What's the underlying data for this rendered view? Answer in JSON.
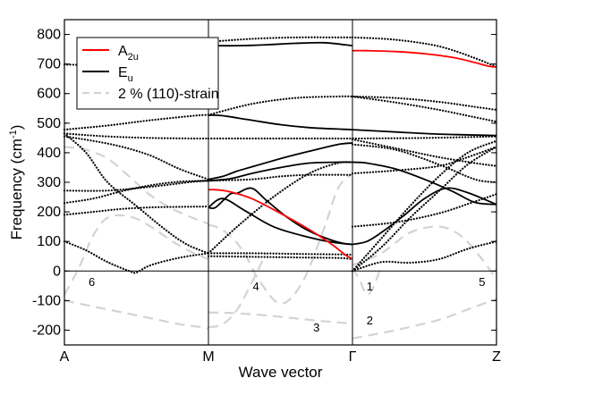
{
  "chart_data": {
    "type": "line",
    "title": "",
    "xlabel": "Wave vector",
    "ylabel": "Frequency (cm",
    "ylabel_sup": "-1",
    "ylabel_close": ")",
    "ylim": [
      -250,
      850
    ],
    "yticks": [
      -200,
      -100,
      0,
      100,
      200,
      300,
      400,
      500,
      600,
      700,
      800
    ],
    "xlim": [
      0,
      3
    ],
    "x_high_symmetry": [
      {
        "label": "A",
        "x": 0
      },
      {
        "label": "M",
        "x": 1
      },
      {
        "label": "Γ",
        "x": 2
      },
      {
        "label": "Z",
        "x": 3
      }
    ],
    "grid": false,
    "legend_position": "top-left",
    "legend": [
      {
        "name": "A",
        "sub": "2u",
        "color": "#ff0000",
        "style": "solid"
      },
      {
        "name": "E",
        "sub": "u",
        "color": "#000000",
        "style": "solid"
      },
      {
        "name": "2 % (110)-strain",
        "sub": "",
        "color": "#d3d3d3",
        "style": "dashed"
      }
    ],
    "annotations": [
      {
        "text": "1",
        "x": 2.12,
        "y": -65
      },
      {
        "text": "2",
        "x": 2.12,
        "y": -180
      },
      {
        "text": "3",
        "x": 1.75,
        "y": -205
      },
      {
        "text": "4",
        "x": 1.33,
        "y": -65
      },
      {
        "text": "5",
        "x": 2.9,
        "y": -50
      },
      {
        "text": "6",
        "x": 0.19,
        "y": -50
      }
    ],
    "series": [
      {
        "kind": "A2u",
        "color": "#ff0000",
        "dash": "solid",
        "x": [
          1.0,
          1.05,
          1.15,
          1.3,
          1.5,
          1.7,
          1.85,
          1.95,
          2.0
        ],
        "y": [
          275,
          275,
          268,
          245,
          195,
          140,
          92,
          55,
          40
        ]
      },
      {
        "kind": "A2u",
        "color": "#ff0000",
        "dash": "solid",
        "x": [
          2.0,
          2.1,
          2.3,
          2.5,
          2.7,
          2.85,
          2.95,
          3.0
        ],
        "y": [
          745,
          745,
          742,
          735,
          722,
          705,
          692,
          690
        ]
      },
      {
        "kind": "Eu",
        "color": "#000000",
        "dash": "solid",
        "x": [
          1.0,
          1.2,
          1.4,
          1.6,
          1.8,
          1.95,
          2.0
        ],
        "y": [
          762,
          762,
          765,
          770,
          772,
          765,
          762
        ]
      },
      {
        "kind": "Eu",
        "color": "#000000",
        "dash": "solid",
        "x": [
          1.0,
          1.1,
          1.3,
          1.5,
          1.7,
          1.9,
          2.0
        ],
        "y": [
          527,
          525,
          510,
          495,
          485,
          480,
          478
        ]
      },
      {
        "kind": "Eu",
        "color": "#000000",
        "dash": "solid",
        "x": [
          2.0,
          2.3,
          2.6,
          3.0
        ],
        "y": [
          478,
          470,
          463,
          458
        ]
      },
      {
        "kind": "Eu",
        "color": "#000000",
        "dash": "solid",
        "x": [
          1.0,
          1.1,
          1.2,
          1.3,
          1.5,
          1.7,
          1.9,
          2.0
        ],
        "y": [
          310,
          320,
          338,
          352,
          380,
          405,
          428,
          433
        ]
      },
      {
        "kind": "Eu",
        "color": "#000000",
        "dash": "solid",
        "x": [
          1.0,
          1.15,
          1.3,
          1.5,
          1.7,
          1.9,
          2.0
        ],
        "y": [
          305,
          312,
          330,
          350,
          365,
          368,
          368
        ]
      },
      {
        "kind": "Eu",
        "color": "#000000",
        "dash": "solid",
        "x": [
          2.0,
          2.1,
          2.3,
          2.5,
          2.7,
          2.85,
          3.0
        ],
        "y": [
          368,
          365,
          345,
          310,
          268,
          232,
          225
        ]
      },
      {
        "kind": "Eu",
        "color": "#000000",
        "dash": "solid",
        "x": [
          1.0,
          1.05,
          1.15,
          1.2,
          1.3,
          1.4,
          1.55,
          1.7,
          1.85,
          1.95,
          2.0
        ],
        "y": [
          215,
          215,
          260,
          263,
          280,
          240,
          180,
          135,
          105,
          92,
          90
        ]
      },
      {
        "kind": "Eu",
        "color": "#000000",
        "dash": "solid",
        "x": [
          1.0,
          1.1,
          1.25,
          1.45,
          1.65,
          1.85,
          2.0
        ],
        "y": [
          215,
          245,
          205,
          150,
          120,
          98,
          90
        ]
      },
      {
        "kind": "Eu",
        "color": "#000000",
        "dash": "solid",
        "x": [
          2.0,
          2.1,
          2.2,
          2.35,
          2.5,
          2.65,
          2.8,
          3.0
        ],
        "y": [
          90,
          100,
          130,
          185,
          245,
          280,
          265,
          225
        ]
      },
      {
        "kind": "strain",
        "color": "#d3d3d3",
        "dash": "dashed",
        "x": [
          0.0,
          0.2,
          0.4,
          0.6,
          0.8,
          0.95,
          1.0
        ],
        "y": [
          -100,
          -120,
          -140,
          -160,
          -180,
          -190,
          -195
        ]
      },
      {
        "kind": "strain",
        "color": "#d3d3d3",
        "dash": "dashed",
        "x": [
          1.0,
          1.2,
          1.4,
          1.6,
          1.8,
          2.0
        ],
        "y": [
          -140,
          -143,
          -150,
          -160,
          -170,
          -178
        ]
      },
      {
        "kind": "strain",
        "color": "#d3d3d3",
        "dash": "dashed",
        "x": [
          2.0,
          2.3,
          2.6,
          2.8,
          3.0
        ],
        "y": [
          -228,
          -200,
          -165,
          -130,
          -95
        ]
      },
      {
        "kind": "strain",
        "color": "#d3d3d3",
        "dash": "dashed",
        "x": [
          0.0,
          0.15,
          0.3,
          0.45,
          0.6,
          0.75,
          0.9,
          1.0
        ],
        "y": [
          420,
          410,
          380,
          320,
          255,
          210,
          178,
          160
        ]
      },
      {
        "kind": "strain",
        "color": "#d3d3d3",
        "dash": "dashed",
        "x": [
          0.0,
          0.1,
          0.2,
          0.3,
          0.45,
          0.6,
          0.75,
          0.9,
          1.0
        ],
        "y": [
          -80,
          10,
          120,
          180,
          185,
          150,
          100,
          60,
          40
        ]
      },
      {
        "kind": "strain",
        "color": "#d3d3d3",
        "dash": "dashed",
        "x": [
          1.0,
          1.05,
          1.15,
          1.25,
          1.35,
          1.5,
          1.65,
          1.8,
          1.9,
          2.0
        ],
        "y": [
          155,
          150,
          120,
          60,
          -30,
          -110,
          -40,
          140,
          280,
          330
        ]
      },
      {
        "kind": "strain",
        "color": "#d3d3d3",
        "dash": "dashed",
        "x": [
          1.0,
          1.1,
          1.2,
          1.3,
          1.4
        ],
        "y": [
          -190,
          -180,
          -130,
          -40,
          60
        ]
      },
      {
        "kind": "strain",
        "color": "#d3d3d3",
        "dash": "dashed",
        "x": [
          2.0,
          2.05,
          2.1,
          2.15,
          2.2
        ],
        "y": [
          10,
          -30,
          -80,
          -50,
          20
        ]
      },
      {
        "kind": "strain",
        "color": "#d3d3d3",
        "dash": "dashed",
        "x": [
          2.0,
          2.2,
          2.4,
          2.6,
          2.75,
          2.9,
          3.0
        ],
        "y": [
          20,
          60,
          130,
          150,
          120,
          40,
          -30
        ]
      },
      {
        "kind": "other",
        "color": "#000000",
        "dash": "dotted",
        "x": [
          0.0,
          0.2,
          0.5,
          0.8,
          1.0
        ],
        "y": [
          698,
          697,
          698,
          720,
          765
        ]
      },
      {
        "kind": "other",
        "color": "#000000",
        "dash": "dotted",
        "x": [
          2.0,
          2.3,
          2.6,
          2.85,
          3.0
        ],
        "y": [
          790,
          782,
          760,
          720,
          690
        ]
      },
      {
        "kind": "other",
        "color": "#000000",
        "dash": "dotted",
        "x": [
          1.0,
          1.3,
          1.6,
          1.9,
          2.0
        ],
        "y": [
          775,
          785,
          790,
          790,
          790
        ]
      },
      {
        "kind": "other",
        "color": "#000000",
        "dash": "dotted",
        "x": [
          1.0,
          1.3,
          1.6,
          1.9,
          2.0,
          2.3,
          2.6,
          2.85,
          3.0
        ],
        "y": [
          528,
          565,
          585,
          590,
          590,
          585,
          572,
          555,
          545
        ]
      },
      {
        "kind": "other",
        "color": "#000000",
        "dash": "dotted",
        "x": [
          0.0,
          0.3,
          0.6,
          0.9,
          1.0
        ],
        "y": [
          478,
          492,
          510,
          525,
          528
        ]
      },
      {
        "kind": "other",
        "color": "#000000",
        "dash": "dotted",
        "x": [
          0.0,
          0.3,
          0.6,
          0.9,
          1.0
        ],
        "y": [
          465,
          455,
          450,
          448,
          448
        ]
      },
      {
        "kind": "other",
        "color": "#000000",
        "dash": "dotted",
        "x": [
          1.0,
          1.4,
          1.8,
          2.0,
          2.5,
          3.0
        ],
        "y": [
          448,
          448,
          448,
          448,
          450,
          455
        ]
      },
      {
        "kind": "other",
        "color": "#000000",
        "dash": "dotted",
        "x": [
          0.0,
          0.2,
          0.4,
          0.6,
          0.8,
          1.0
        ],
        "y": [
          455,
          440,
          420,
          390,
          345,
          310
        ]
      },
      {
        "kind": "other",
        "color": "#000000",
        "dash": "dotted",
        "x": [
          0.0,
          0.3,
          0.6,
          0.9,
          1.0
        ],
        "y": [
          272,
          272,
          285,
          302,
          305
        ]
      },
      {
        "kind": "other",
        "color": "#000000",
        "dash": "dotted",
        "x": [
          0.0,
          0.2,
          0.4,
          0.6,
          0.8,
          1.0
        ],
        "y": [
          230,
          245,
          270,
          290,
          302,
          305
        ]
      },
      {
        "kind": "other",
        "color": "#000000",
        "dash": "dotted",
        "x": [
          0.0,
          0.2,
          0.4,
          0.6,
          0.8,
          1.0
        ],
        "y": [
          190,
          200,
          210,
          215,
          217,
          218
        ]
      },
      {
        "kind": "other",
        "color": "#000000",
        "dash": "dotted",
        "x": [
          0.0,
          0.15,
          0.3,
          0.5,
          0.7,
          0.85,
          1.0
        ],
        "y": [
          465,
          400,
          300,
          220,
          140,
          90,
          60
        ]
      },
      {
        "kind": "other",
        "color": "#000000",
        "dash": "dotted",
        "x": [
          0.0,
          0.15,
          0.3,
          0.45,
          0.5,
          0.6,
          0.8,
          1.0
        ],
        "y": [
          100,
          70,
          30,
          0,
          -5,
          20,
          45,
          60
        ]
      },
      {
        "kind": "other",
        "color": "#000000",
        "dash": "dotted",
        "x": [
          1.0,
          1.3,
          1.6,
          1.9,
          2.0
        ],
        "y": [
          60,
          60,
          58,
          56,
          55
        ]
      },
      {
        "kind": "other",
        "color": "#000000",
        "dash": "dotted",
        "x": [
          1.0,
          1.3,
          1.6,
          1.9,
          2.0
        ],
        "y": [
          50,
          48,
          46,
          44,
          40
        ]
      },
      {
        "kind": "other",
        "color": "#000000",
        "dash": "dotted",
        "x": [
          1.0,
          1.2,
          1.45,
          1.7,
          1.9,
          2.0
        ],
        "y": [
          60,
          150,
          250,
          330,
          365,
          368
        ]
      },
      {
        "kind": "other",
        "color": "#000000",
        "dash": "dotted",
        "x": [
          1.0,
          1.3,
          1.5,
          1.7,
          2.0
        ],
        "y": [
          305,
          310,
          320,
          325,
          325
        ]
      },
      {
        "kind": "other",
        "color": "#000000",
        "dash": "dotted",
        "x": [
          2.0,
          2.2,
          2.4,
          2.6,
          2.8,
          3.0
        ],
        "y": [
          0,
          30,
          28,
          40,
          75,
          100
        ]
      },
      {
        "kind": "other",
        "color": "#000000",
        "dash": "dotted",
        "x": [
          2.0,
          2.2,
          2.4,
          2.6,
          2.8,
          3.0
        ],
        "y": [
          0,
          110,
          220,
          320,
          400,
          440
        ]
      },
      {
        "kind": "other",
        "color": "#000000",
        "dash": "dotted",
        "x": [
          2.0,
          2.2,
          2.4,
          2.6,
          2.8,
          3.0
        ],
        "y": [
          0,
          80,
          180,
          270,
          360,
          420
        ]
      },
      {
        "kind": "other",
        "color": "#000000",
        "dash": "dotted",
        "x": [
          2.0,
          2.3,
          2.6,
          2.8,
          3.0
        ],
        "y": [
          330,
          340,
          355,
          385,
          420
        ]
      },
      {
        "kind": "other",
        "color": "#000000",
        "dash": "dotted",
        "x": [
          2.0,
          2.3,
          2.6,
          2.85,
          3.0
        ],
        "y": [
          428,
          410,
          360,
          310,
          300
        ]
      },
      {
        "kind": "other",
        "color": "#000000",
        "dash": "dotted",
        "x": [
          2.0,
          2.3,
          2.6,
          2.85,
          3.0
        ],
        "y": [
          150,
          165,
          195,
          235,
          260
        ]
      },
      {
        "kind": "other",
        "color": "#000000",
        "dash": "dotted",
        "x": [
          2.0,
          2.3,
          2.6,
          2.85,
          3.0
        ],
        "y": [
          445,
          415,
          385,
          365,
          355
        ]
      },
      {
        "kind": "other",
        "color": "#000000",
        "dash": "dotted",
        "x": [
          2.0,
          2.3,
          2.6,
          2.85,
          3.0
        ],
        "y": [
          590,
          570,
          545,
          520,
          505
        ]
      }
    ]
  }
}
